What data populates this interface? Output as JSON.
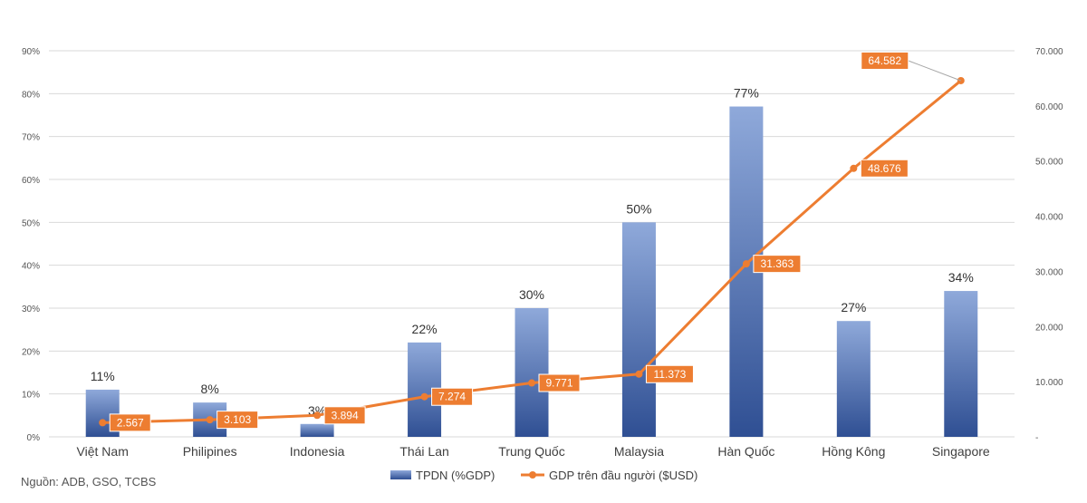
{
  "chart_data": {
    "type": "bar+line",
    "categories": [
      "Việt Nam",
      "Philipines",
      "Indonesia",
      "Thái Lan",
      "Trung Quốc",
      "Malaysia",
      "Hàn Quốc",
      "Hồng Kông",
      "Singapore"
    ],
    "series": [
      {
        "name": "TPDN (%GDP)",
        "type": "bar",
        "axis": "left",
        "values": [
          11,
          8,
          3,
          22,
          30,
          50,
          77,
          27,
          34
        ],
        "labels": [
          "11%",
          "8%",
          "3%",
          "22%",
          "30%",
          "50%",
          "77%",
          "27%",
          "34%"
        ]
      },
      {
        "name": "GDP trên đầu người ($USD)",
        "type": "line",
        "axis": "right",
        "values": [
          2567,
          3103,
          3894,
          7274,
          9771,
          11373,
          31363,
          48676,
          64582
        ],
        "labels": [
          "2.567",
          "3.103",
          "3.894",
          "7.274",
          "9.771",
          "11.373",
          "31.363",
          "48.676",
          "64.582"
        ]
      }
    ],
    "left_axis": {
      "ylim": [
        0,
        90
      ],
      "ticks": [
        0,
        10,
        20,
        30,
        40,
        50,
        60,
        70,
        80,
        90
      ],
      "tick_labels": [
        "0%",
        "10%",
        "20%",
        "30%",
        "40%",
        "50%",
        "60%",
        "70%",
        "80%",
        "90%"
      ]
    },
    "right_axis": {
      "ylim": [
        0,
        70000
      ],
      "ticks": [
        0,
        10000,
        20000,
        30000,
        40000,
        50000,
        60000,
        70000
      ],
      "tick_labels": [
        "-",
        "10.000",
        "20.000",
        "30.000",
        "40.000",
        "50.000",
        "60.000",
        "70.000"
      ]
    },
    "legend": [
      "TPDN (%GDP)",
      "GDP trên đầu người ($USD)"
    ],
    "legend_position": "bottom",
    "grid": true,
    "colors": {
      "bar_top": "#8fa9da",
      "bar_bottom": "#2f4f93",
      "line": "#ed7d31",
      "label_box": "#ed7d31",
      "grid": "#d9d9d9"
    }
  },
  "source_note": "Nguồn: ADB, GSO, TCBS"
}
